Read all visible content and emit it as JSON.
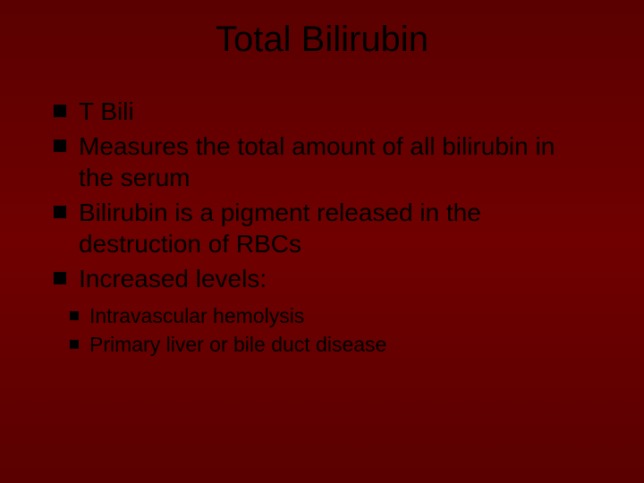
{
  "slide": {
    "background_gradient": [
      "#5a0000",
      "#700000",
      "#5a0000"
    ],
    "title": "Total Bilirubin",
    "title_color": "#000000",
    "title_fontsize": 40,
    "bullet_color": "#000000",
    "text_color": "#000000",
    "l1_fontsize": 28,
    "l2_fontsize": 23,
    "bullets": [
      {
        "text": "T Bili"
      },
      {
        "text": "Measures the total amount of all bilirubin in the serum"
      },
      {
        "text": "Bilirubin is a pigment released in the destruction of RBCs"
      },
      {
        "text": "Increased levels:"
      }
    ],
    "sub_bullets": [
      {
        "text": "Intravascular hemolysis"
      },
      {
        "text": "Primary liver or bile duct disease"
      }
    ]
  }
}
